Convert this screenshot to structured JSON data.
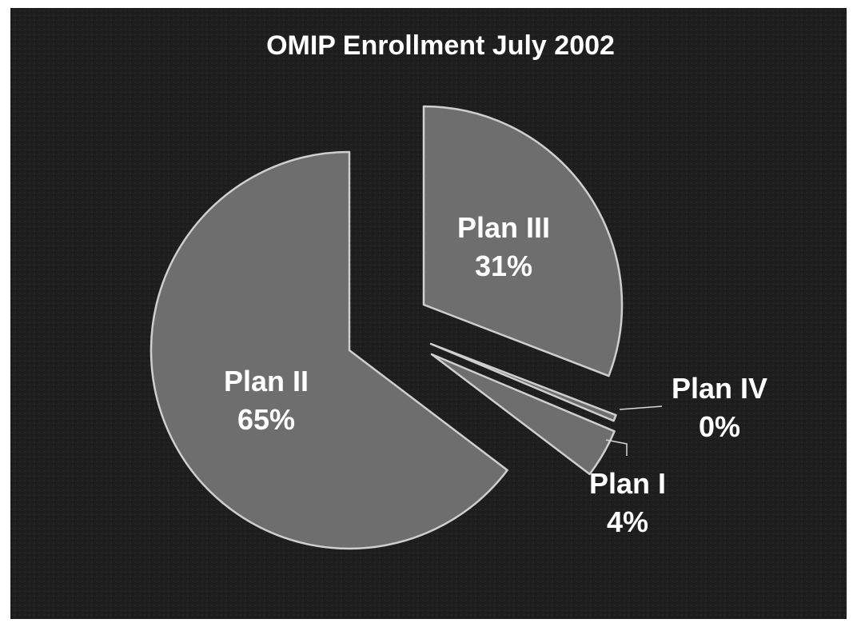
{
  "chart_data": {
    "type": "pie",
    "title": "OMIP Enrollment July 2002",
    "slices": [
      {
        "label": "Plan III",
        "value": 31,
        "display": "31%"
      },
      {
        "label": "Plan IV",
        "value": 0.5,
        "display": "0%"
      },
      {
        "label": "Plan I",
        "value": 4,
        "display": "4%"
      },
      {
        "label": "Plan II",
        "value": 65,
        "display": "65%"
      }
    ],
    "exploded": true,
    "legend": "none"
  },
  "colors": {
    "background": "#1c1c1c",
    "slice_fill": "#6e6e6e",
    "slice_stroke": "#cfcfcf",
    "text": "#ffffff"
  }
}
